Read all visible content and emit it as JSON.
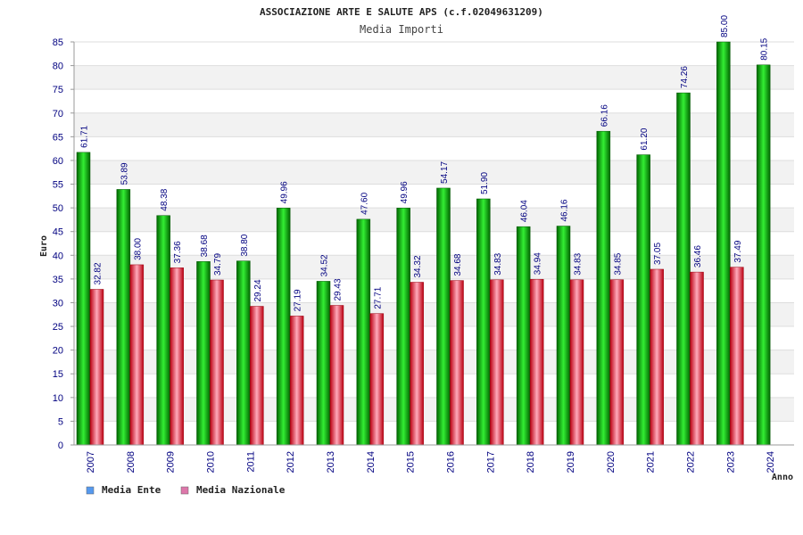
{
  "chart_data": {
    "type": "bar",
    "title": "ASSOCIAZIONE ARTE E SALUTE APS (c.f.02049631209)",
    "subtitle": "Media Importi",
    "xlabel": "Anno",
    "ylabel": "Euro",
    "ylim": [
      0,
      85
    ],
    "ytick_step": 5,
    "grid": true,
    "legend_position": "bottom-left",
    "categories": [
      "2007",
      "2008",
      "2009",
      "2010",
      "2011",
      "2012",
      "2013",
      "2014",
      "2015",
      "2016",
      "2017",
      "2018",
      "2019",
      "2020",
      "2021",
      "2022",
      "2023",
      "2024"
    ],
    "series": [
      {
        "name": "Media Ente",
        "color": "#00a000",
        "legend_color": "#5599ee",
        "values": [
          61.71,
          53.89,
          48.38,
          38.68,
          38.8,
          49.96,
          34.52,
          47.6,
          49.96,
          54.17,
          51.9,
          46.04,
          46.16,
          66.16,
          61.2,
          74.26,
          85.0,
          80.15
        ],
        "labels": [
          "61.71",
          "53.89",
          "48.38",
          "38.68",
          "38.80",
          "49.96",
          "34.52",
          "47.60",
          "49.96",
          "54.17",
          "51.90",
          "46.04",
          "46.16",
          "66.16",
          "61.20",
          "74.26",
          "85.00",
          "80.15"
        ]
      },
      {
        "name": "Media Nazionale",
        "color": "#e02030",
        "legend_color": "#dd77aa",
        "values": [
          32.82,
          38.0,
          37.36,
          34.79,
          29.24,
          27.19,
          29.43,
          27.71,
          34.32,
          34.68,
          34.83,
          34.94,
          34.83,
          34.85,
          37.05,
          36.46,
          37.49,
          null
        ],
        "labels": [
          "32.82",
          "38.00",
          "37.36",
          "34.79",
          "29.24",
          "27.19",
          "29.43",
          "27.71",
          "34.32",
          "34.68",
          "34.83",
          "34.94",
          "34.83",
          "34.85",
          "37.05",
          "36.46",
          "37.49",
          ""
        ]
      }
    ]
  }
}
